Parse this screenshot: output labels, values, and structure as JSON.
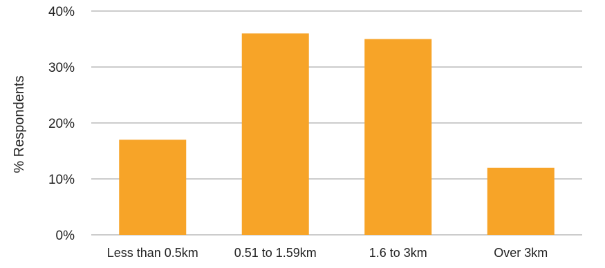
{
  "chart_data": {
    "type": "bar",
    "categories": [
      "Less than 0.5km",
      "0.51 to 1.59km",
      "1.6 to 3km",
      "Over 3km"
    ],
    "values": [
      17,
      36,
      35,
      12
    ],
    "value_unit": "%",
    "title": "",
    "xlabel": "",
    "ylabel": "% Respondents",
    "ylim": [
      0,
      40
    ],
    "yticks": [
      0,
      10,
      20,
      30,
      40
    ],
    "ytick_labels": [
      "0%",
      "10%",
      "20%",
      "30%",
      "40%"
    ],
    "grid": "horizontal",
    "bar_color": "#F7A428",
    "grid_color": "#9A9A9A"
  }
}
